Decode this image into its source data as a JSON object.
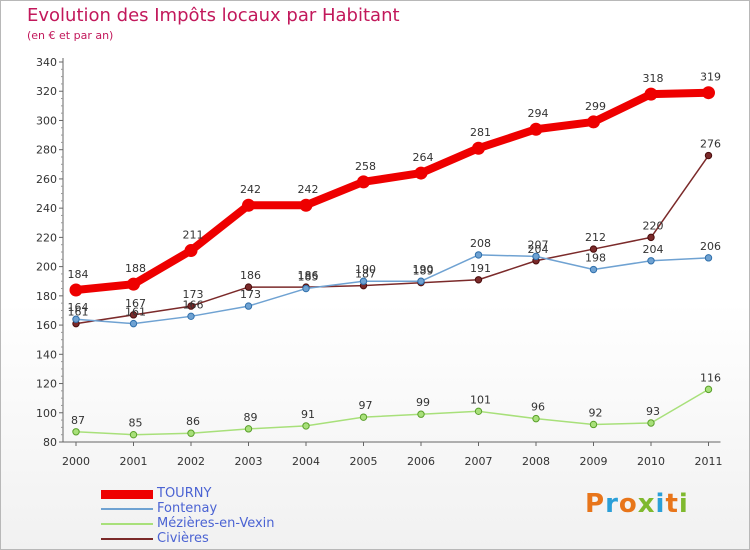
{
  "title": "Evolution des Impôts locaux par Habitant",
  "subtitle": "(en € et par an)",
  "logo": {
    "text": "Proxiti",
    "colors": [
      "#e8751a",
      "#2a9fd8",
      "#e8751a",
      "#7fb92e",
      "#2a9fd8",
      "#e8751a",
      "#7fb92e"
    ]
  },
  "chart_data": {
    "type": "line",
    "x": [
      "2000",
      "2001",
      "2002",
      "2003",
      "2004",
      "2005",
      "2006",
      "2007",
      "2008",
      "2009",
      "2010",
      "2011"
    ],
    "ylim": [
      80,
      340
    ],
    "yticks": [
      80,
      100,
      120,
      140,
      160,
      180,
      200,
      220,
      240,
      260,
      280,
      300,
      320,
      340
    ],
    "grid": false,
    "legend_position": "bottom-left",
    "series": [
      {
        "name": "TOURNY",
        "color": "#ee0000",
        "values": [
          184,
          188,
          211,
          242,
          242,
          258,
          264,
          281,
          294,
          299,
          318,
          319
        ]
      },
      {
        "name": "Fontenay",
        "color": "#6fa2d2",
        "values": [
          164,
          161,
          166,
          173,
          185,
          190,
          190,
          208,
          207,
          198,
          204,
          206
        ]
      },
      {
        "name": "Mézières-en-Vexin",
        "color": "#a8e07a",
        "values": [
          87,
          85,
          86,
          89,
          91,
          97,
          99,
          101,
          96,
          92,
          93,
          116
        ]
      },
      {
        "name": "Civières",
        "color": "#7b2a2a",
        "values": [
          161,
          167,
          173,
          186,
          186,
          187,
          189,
          191,
          204,
          212,
          220,
          276
        ]
      }
    ]
  }
}
